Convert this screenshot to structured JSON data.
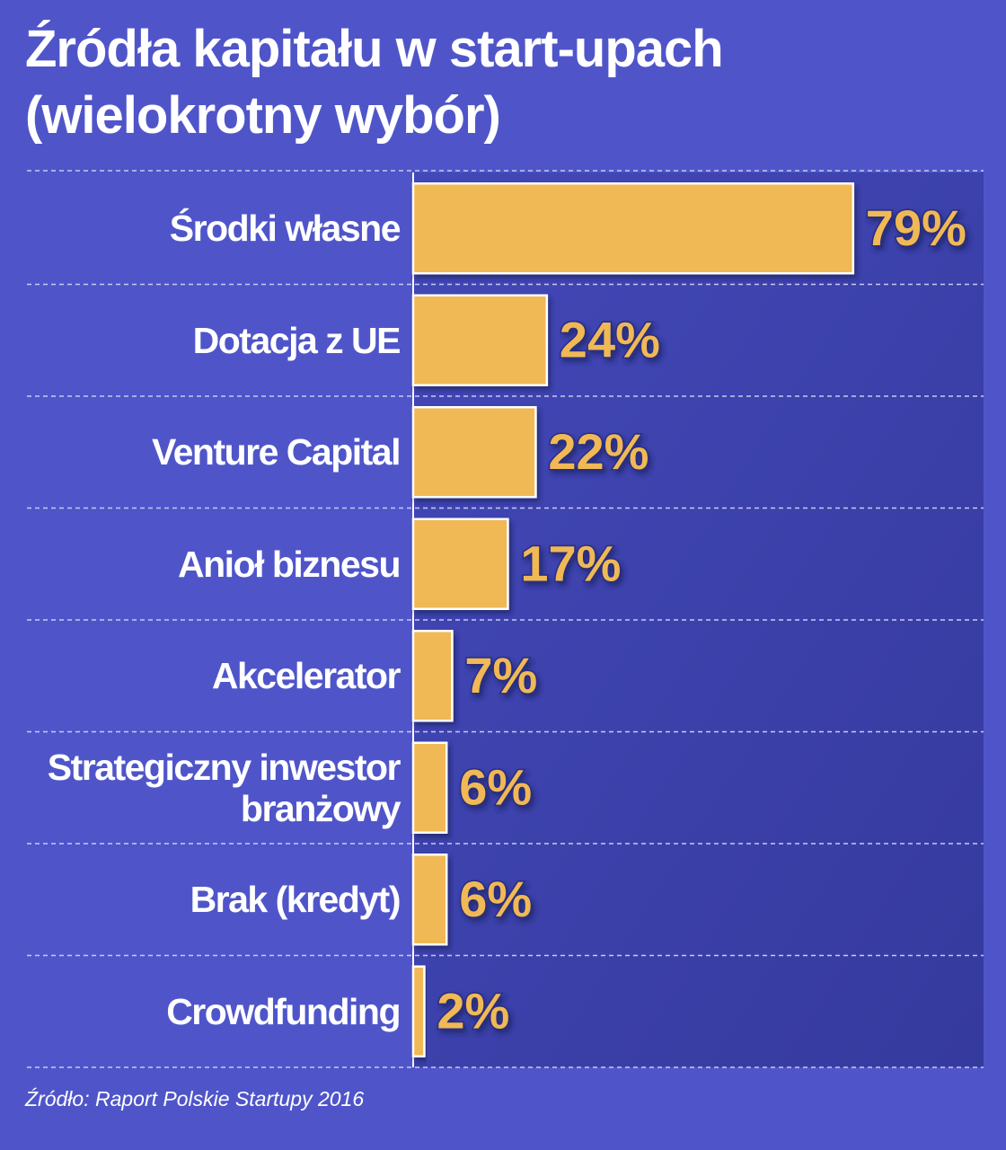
{
  "chart_data": {
    "type": "hbar",
    "title": "Źródła kapitału w start-upach (wielokrotny wybór)",
    "categories": [
      "Środki własne",
      "Dotacja z UE",
      "Venture Capital",
      "Anioł biznesu",
      "Akcelerator",
      "Strategiczny inwestor branżowy",
      "Brak (kredyt)",
      "Crowdfunding"
    ],
    "values": [
      79,
      24,
      22,
      17,
      7,
      6,
      6,
      2
    ],
    "value_labels": [
      "79%",
      "24%",
      "22%",
      "17%",
      "7%",
      "6%",
      "6%",
      "2%"
    ],
    "color": "#f0b955",
    "source": "Źródło: Raport Polskie Startupy 2016"
  }
}
